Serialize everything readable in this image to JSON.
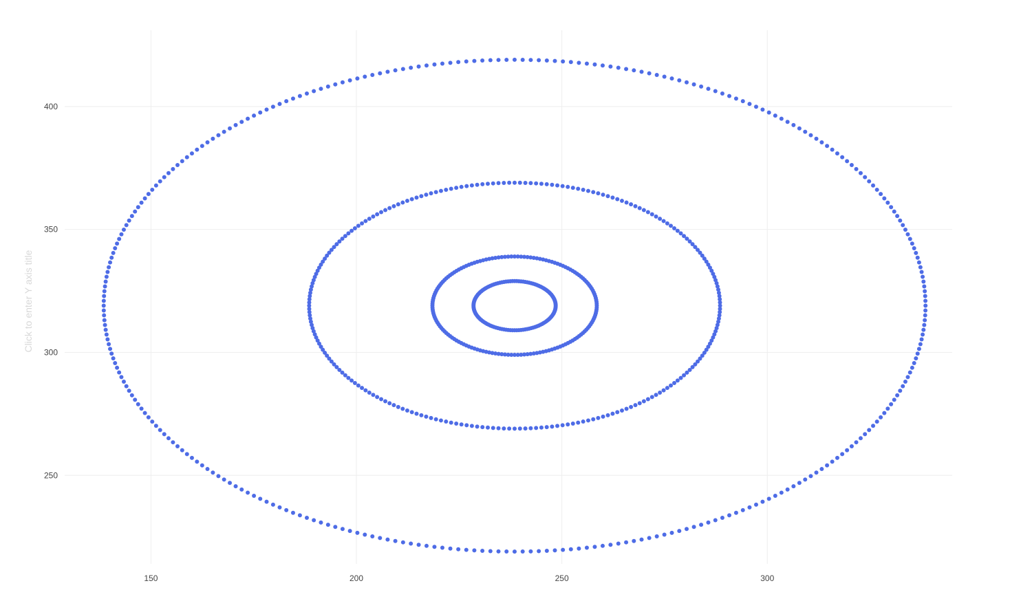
{
  "chart_data": {
    "type": "scatter",
    "title": "",
    "xlabel": "",
    "ylabel": "Click to enter Y axis title",
    "xlim": [
      129,
      345
    ],
    "ylim": [
      214,
      431
    ],
    "x_ticks": [
      150,
      200,
      250,
      300
    ],
    "y_ticks": [
      250,
      300,
      350,
      400
    ],
    "grid": true,
    "legend": "none",
    "marker_color": "#4e6ce6",
    "series": [
      {
        "shape": "ellipse",
        "center": [
          238.5,
          319
        ],
        "rx": 100,
        "ry": 100,
        "points": 320,
        "x_range": [
          138.5,
          338.5
        ],
        "y_range": [
          219,
          419
        ]
      },
      {
        "shape": "ellipse",
        "center": [
          238.5,
          319
        ],
        "rx": 50,
        "ry": 50,
        "points": 240,
        "x_range": [
          188.5,
          288.5
        ],
        "y_range": [
          269,
          369
        ]
      },
      {
        "shape": "ellipse",
        "center": [
          238.5,
          319
        ],
        "rx": 20,
        "ry": 20,
        "points": 160,
        "x_range": [
          218.5,
          258.5
        ],
        "y_range": [
          299,
          339
        ]
      },
      {
        "shape": "ellipse",
        "center": [
          238.5,
          319
        ],
        "rx": 10,
        "ry": 10,
        "points": 120,
        "x_range": [
          228.5,
          248.5
        ],
        "y_range": [
          309,
          329
        ]
      }
    ]
  }
}
